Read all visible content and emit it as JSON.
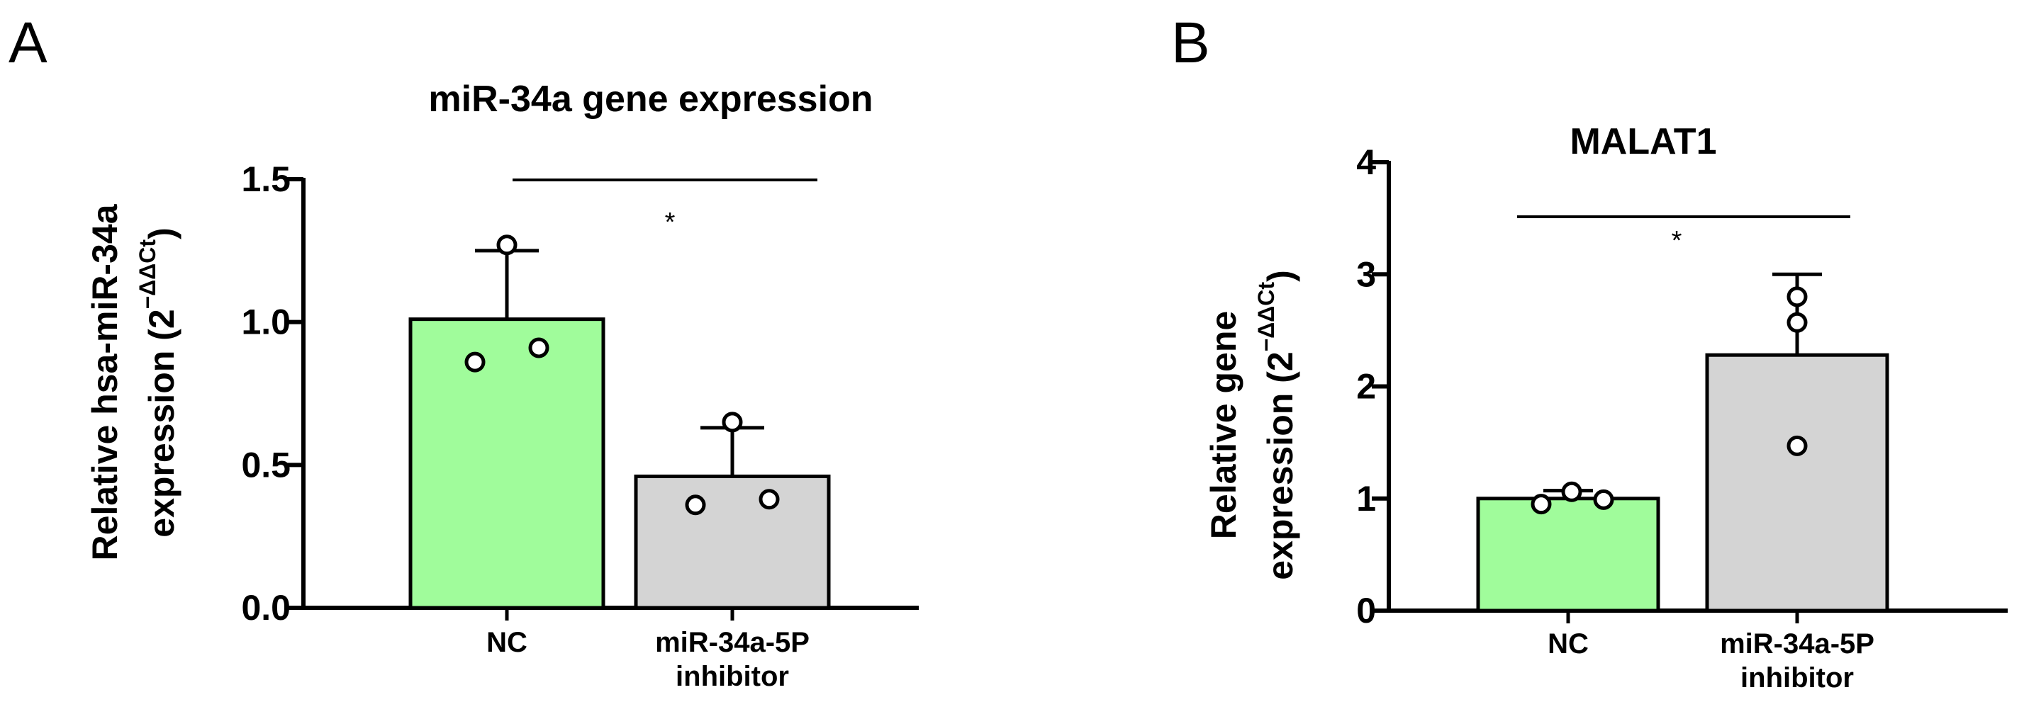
{
  "panels": [
    {
      "letter": "A"
    },
    {
      "letter": "B"
    }
  ],
  "chart_data": [
    {
      "type": "bar",
      "panel": "A",
      "title": "miR-34a gene expression",
      "ylabel_line1": "Relative hsa-miR-34a",
      "ylabel_line2": "expression (2",
      "ylabel_sup": "−ΔΔCt",
      "ylabel_close": ")",
      "ylim": [
        0,
        1.5
      ],
      "yticks": [
        0.0,
        0.5,
        1.0,
        1.5
      ],
      "ytick_labels": [
        "0.0",
        "0.5",
        "1.0",
        "1.5"
      ],
      "categories": [
        [
          "NC"
        ],
        [
          "miR-34a-5P",
          "inhibitor"
        ]
      ],
      "values": [
        1.01,
        0.46
      ],
      "error_upper": [
        1.25,
        0.63
      ],
      "points": [
        [
          1.27,
          0.86,
          0.91
        ],
        [
          0.65,
          0.36,
          0.38
        ]
      ],
      "bar_colors": [
        "#a0fc9b",
        "#d4d4d4"
      ],
      "significance": "*",
      "grid": false
    },
    {
      "type": "bar",
      "panel": "B",
      "title": "MALAT1",
      "ylabel_line1": "Relative gene",
      "ylabel_line2": "expression (2",
      "ylabel_sup": "−ΔΔCt",
      "ylabel_close": ")",
      "ylim": [
        0,
        4
      ],
      "yticks": [
        0,
        1,
        2,
        3,
        4
      ],
      "ytick_labels": [
        "0",
        "1",
        "2",
        "3",
        "4"
      ],
      "categories": [
        [
          "NC"
        ],
        [
          "miR-34a-5P",
          "inhibitor"
        ]
      ],
      "values": [
        1.0,
        2.28
      ],
      "error_upper": [
        1.07,
        3.0
      ],
      "points": [
        [
          0.95,
          1.06,
          0.99
        ],
        [
          2.8,
          2.57,
          1.47
        ]
      ],
      "bar_colors": [
        "#a0fc9b",
        "#d4d4d4"
      ],
      "significance": "*",
      "grid": false
    }
  ]
}
